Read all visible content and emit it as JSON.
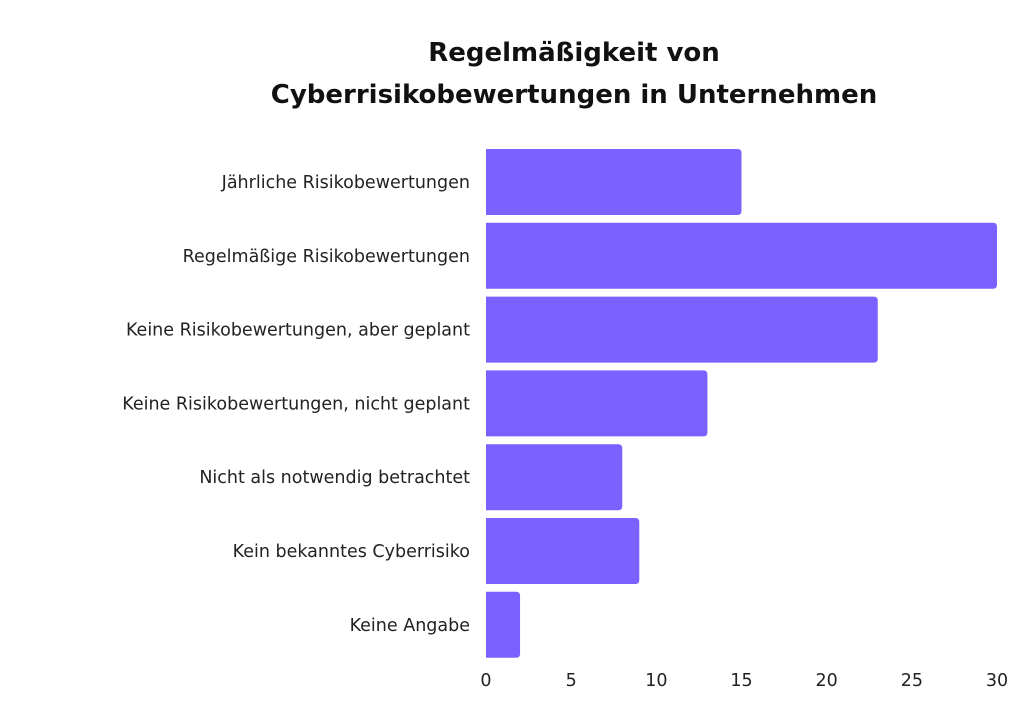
{
  "chart_data": {
    "type": "bar",
    "orientation": "horizontal",
    "title_lines": [
      "Regelmäßigkeit von",
      "Cyberrisikobewertungen in Unternehmen"
    ],
    "categories": [
      "Jährliche Risikobewertungen",
      "Regelmäßige Risikobewertungen",
      "Keine Risikobewertungen, aber geplant",
      "Keine Risikobewertungen, nicht geplant",
      "Nicht als notwendig betrachtet",
      "Kein bekanntes Cyberrisiko",
      "Keine Angabe"
    ],
    "values": [
      15,
      30,
      23,
      13,
      8,
      9,
      2
    ],
    "xlim": [
      0,
      30
    ],
    "xticks": [
      0,
      5,
      10,
      15,
      20,
      25,
      30
    ],
    "xlabel": "",
    "ylabel": "",
    "grid": false,
    "bar_color": "#7B61FF"
  }
}
